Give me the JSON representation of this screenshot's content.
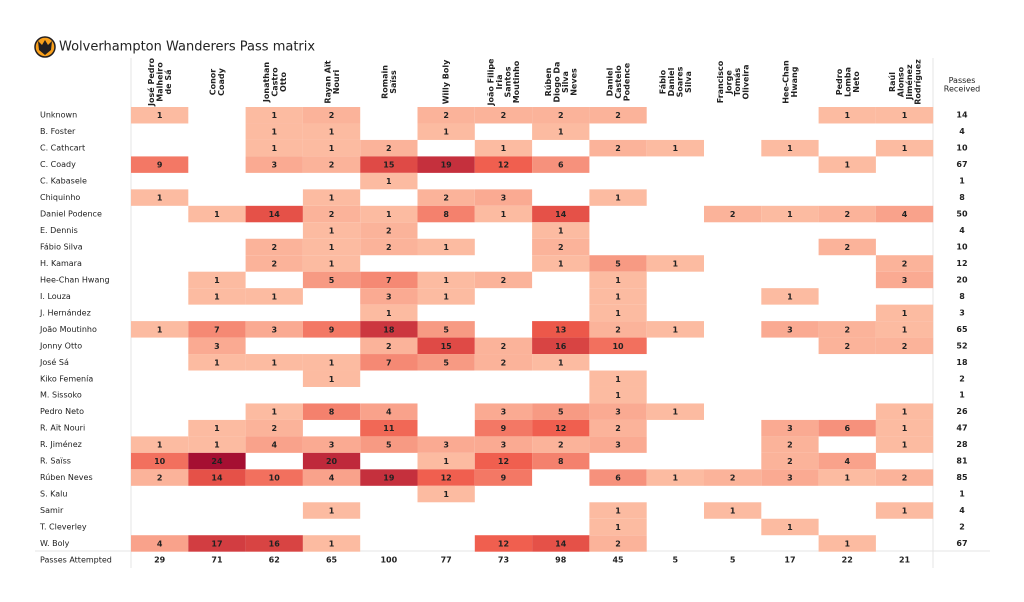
{
  "chart_data": {
    "type": "heatmap",
    "title": "Wolverhampton Wanderers Pass matrix",
    "x_categories": [
      "José Pedro\nMalheiro\nde Sá",
      "Conor\nCoady",
      "Jonathan\nCastro\nOtto",
      "Rayan Aït\nNouri",
      "Romain\nSaïss",
      "Willy Boly",
      "João Filipe\nIria\nSantos\nMoutinho",
      "Rúben\nDiogo Da\nSilva\nNeves",
      "Daniel\nCastelo\nPodence",
      "Fábio\nDaniel\nSoares\nSilva",
      "Francisco\nJorge\nTomás\nOliveira",
      "Hee-Chan\nHwang",
      "Pedro\nLomba\nNeto",
      "Raúl\nAlonso\nJiménez\nRodríguez"
    ],
    "y_categories": [
      "Unknown",
      "B. Foster",
      "C. Cathcart",
      "C. Coady",
      "C. Kabasele",
      "Chiquinho",
      "Daniel Podence",
      "E. Dennis",
      "Fábio Silva",
      "H. Kamara",
      "Hee-Chan Hwang",
      "I. Louza",
      "J. Hernández",
      "João Moutinho",
      "Jonny Otto",
      "José Sá",
      "Kiko Femenía",
      "M. Sissoko",
      "Pedro Neto",
      "R. Aït Nouri",
      "R. Jiménez",
      "R. Saïss",
      "Rúben Neves",
      "S. Kalu",
      "Samir",
      "T. Cleverley",
      "W. Boly"
    ],
    "values": [
      [
        1,
        null,
        1,
        2,
        null,
        2,
        2,
        2,
        2,
        null,
        null,
        null,
        1,
        1
      ],
      [
        null,
        null,
        1,
        1,
        null,
        1,
        null,
        1,
        null,
        null,
        null,
        null,
        null,
        null
      ],
      [
        null,
        null,
        1,
        1,
        2,
        null,
        1,
        null,
        2,
        1,
        null,
        1,
        null,
        1
      ],
      [
        9,
        null,
        3,
        2,
        15,
        19,
        12,
        6,
        null,
        null,
        null,
        null,
        1,
        null
      ],
      [
        null,
        null,
        null,
        null,
        1,
        null,
        null,
        null,
        null,
        null,
        null,
        null,
        null,
        null
      ],
      [
        1,
        null,
        null,
        1,
        null,
        2,
        3,
        null,
        1,
        null,
        null,
        null,
        null,
        null
      ],
      [
        null,
        1,
        14,
        2,
        1,
        8,
        1,
        14,
        null,
        null,
        2,
        1,
        2,
        4
      ],
      [
        null,
        null,
        null,
        1,
        2,
        null,
        null,
        1,
        null,
        null,
        null,
        null,
        null,
        null
      ],
      [
        null,
        null,
        2,
        1,
        2,
        1,
        null,
        2,
        null,
        null,
        null,
        null,
        2,
        null
      ],
      [
        null,
        null,
        2,
        1,
        null,
        null,
        null,
        1,
        5,
        1,
        null,
        null,
        null,
        2
      ],
      [
        null,
        1,
        null,
        5,
        7,
        1,
        2,
        null,
        1,
        null,
        null,
        null,
        null,
        3
      ],
      [
        null,
        1,
        1,
        null,
        3,
        1,
        null,
        null,
        1,
        null,
        null,
        1,
        null,
        null
      ],
      [
        null,
        null,
        null,
        null,
        1,
        null,
        null,
        null,
        1,
        null,
        null,
        null,
        null,
        1
      ],
      [
        1,
        7,
        3,
        9,
        18,
        5,
        null,
        13,
        2,
        1,
        null,
        3,
        2,
        1
      ],
      [
        null,
        3,
        null,
        null,
        2,
        15,
        2,
        16,
        10,
        null,
        null,
        null,
        2,
        2
      ],
      [
        null,
        1,
        1,
        1,
        7,
        5,
        2,
        1,
        null,
        null,
        null,
        null,
        null,
        null
      ],
      [
        null,
        null,
        null,
        1,
        null,
        null,
        null,
        null,
        1,
        null,
        null,
        null,
        null,
        null
      ],
      [
        null,
        null,
        null,
        null,
        null,
        null,
        null,
        null,
        1,
        null,
        null,
        null,
        null,
        null
      ],
      [
        null,
        null,
        1,
        8,
        4,
        null,
        3,
        5,
        3,
        1,
        null,
        null,
        null,
        1
      ],
      [
        null,
        1,
        2,
        null,
        11,
        null,
        9,
        12,
        2,
        null,
        null,
        3,
        6,
        1
      ],
      [
        1,
        1,
        4,
        3,
        5,
        3,
        3,
        2,
        3,
        null,
        null,
        2,
        null,
        1
      ],
      [
        10,
        24,
        null,
        20,
        null,
        1,
        12,
        8,
        null,
        null,
        null,
        2,
        4,
        null
      ],
      [
        2,
        14,
        10,
        4,
        19,
        12,
        9,
        null,
        6,
        1,
        2,
        3,
        1,
        2
      ],
      [
        null,
        null,
        null,
        null,
        null,
        1,
        null,
        null,
        null,
        null,
        null,
        null,
        null,
        null
      ],
      [
        null,
        null,
        null,
        1,
        null,
        null,
        null,
        null,
        1,
        null,
        1,
        null,
        null,
        1
      ],
      [
        null,
        null,
        null,
        null,
        null,
        null,
        null,
        null,
        1,
        null,
        null,
        1,
        null,
        null
      ],
      [
        4,
        17,
        16,
        1,
        null,
        null,
        12,
        14,
        2,
        null,
        null,
        null,
        1,
        null
      ]
    ],
    "row_total_label": "Passes\nReceived",
    "row_totals": [
      14,
      4,
      10,
      67,
      1,
      8,
      50,
      4,
      10,
      12,
      20,
      8,
      3,
      65,
      52,
      18,
      2,
      1,
      26,
      47,
      28,
      81,
      85,
      1,
      4,
      2,
      67
    ],
    "col_total_label": "Passes Attempted",
    "col_totals": [
      29,
      71,
      62,
      65,
      100,
      77,
      73,
      98,
      45,
      5,
      5,
      17,
      22,
      21
    ],
    "colors": [
      "#fcbba1",
      "#ef5b4b",
      "#a50f32"
    ]
  }
}
